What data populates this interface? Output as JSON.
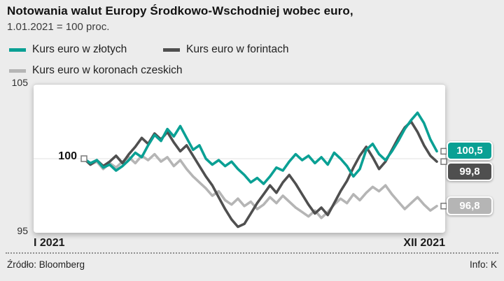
{
  "header": {
    "title": "Notowania walut Europy Środkowo-Wschodniej wobec euro,",
    "subtitle": "1.01.2021 = 100 proc."
  },
  "legend": [
    {
      "label": "Kurs euro w złotych",
      "color": "#0aa094"
    },
    {
      "label": "Kurs euro w forintach",
      "color": "#4f4f4f"
    },
    {
      "label": "Kurs euro w koronach czeskich",
      "color": "#b5b5b5"
    }
  ],
  "chart_data": {
    "type": "line",
    "title": "Notowania walut Europy Środkowo-Wschodniej wobec euro, 1.01.2021 = 100 proc.",
    "xlabel": "",
    "ylabel": "",
    "ylim": [
      95,
      105
    ],
    "yticks": [
      105,
      100,
      95
    ],
    "baseline_label": "100",
    "x_start_label": "I 2021",
    "x_end_label": "XII 2021",
    "grid": "horizontal-minimal",
    "legend_position": "top",
    "series": [
      {
        "name": "Kurs euro w złotych",
        "color": "#0aa094",
        "end_label": "100,5",
        "end_value": 100.5,
        "values": [
          100.0,
          99.7,
          99.9,
          99.4,
          99.6,
          99.2,
          99.5,
          99.9,
          100.4,
          100.1,
          100.9,
          101.6,
          101.2,
          102.0,
          101.5,
          102.2,
          101.4,
          100.6,
          100.9,
          100.0,
          99.6,
          99.9,
          99.5,
          99.8,
          99.3,
          98.9,
          98.4,
          98.7,
          98.3,
          98.8,
          99.4,
          99.2,
          99.8,
          100.3,
          99.9,
          100.2,
          99.7,
          100.1,
          99.6,
          100.4,
          100.0,
          99.5,
          98.8,
          99.3,
          100.6,
          101.0,
          100.3,
          99.9,
          100.5,
          101.2,
          102.0,
          102.6,
          103.1,
          102.4,
          101.3,
          100.5
        ]
      },
      {
        "name": "Kurs euro w forintach",
        "color": "#4f4f4f",
        "end_label": "99,8",
        "end_value": 99.8,
        "values": [
          100.0,
          99.6,
          99.9,
          99.5,
          99.8,
          100.2,
          99.7,
          100.3,
          100.8,
          101.4,
          101.0,
          101.7,
          101.3,
          101.8,
          101.1,
          100.5,
          100.9,
          100.2,
          99.5,
          98.8,
          98.2,
          97.4,
          96.6,
          95.9,
          95.4,
          95.6,
          96.3,
          97.0,
          97.6,
          98.2,
          97.7,
          98.4,
          98.9,
          98.3,
          97.6,
          96.9,
          96.3,
          96.7,
          96.2,
          97.0,
          97.8,
          98.5,
          99.4,
          100.2,
          100.8,
          100.1,
          99.3,
          99.8,
          100.6,
          101.4,
          102.1,
          102.5,
          101.8,
          100.9,
          100.2,
          99.8
        ]
      },
      {
        "name": "Kurs euro w koronach czeskich",
        "color": "#b5b5b5",
        "end_label": "96,8",
        "end_value": 96.8,
        "values": [
          100.0,
          99.6,
          99.8,
          99.3,
          99.7,
          99.4,
          99.8,
          100.1,
          99.7,
          100.2,
          99.9,
          100.3,
          99.8,
          100.1,
          99.5,
          99.9,
          99.3,
          98.8,
          98.4,
          98.0,
          97.5,
          97.8,
          97.2,
          96.9,
          97.3,
          96.8,
          97.1,
          96.6,
          96.9,
          97.4,
          97.0,
          97.5,
          97.1,
          96.7,
          96.4,
          96.1,
          96.5,
          96.0,
          96.4,
          96.9,
          97.3,
          97.0,
          97.6,
          97.2,
          97.7,
          98.1,
          97.8,
          98.2,
          97.6,
          97.1,
          96.6,
          97.0,
          97.4,
          96.9,
          96.5,
          96.8
        ]
      }
    ]
  },
  "footer": {
    "source": "Źródło: Bloomberg",
    "info": "Info: K"
  }
}
